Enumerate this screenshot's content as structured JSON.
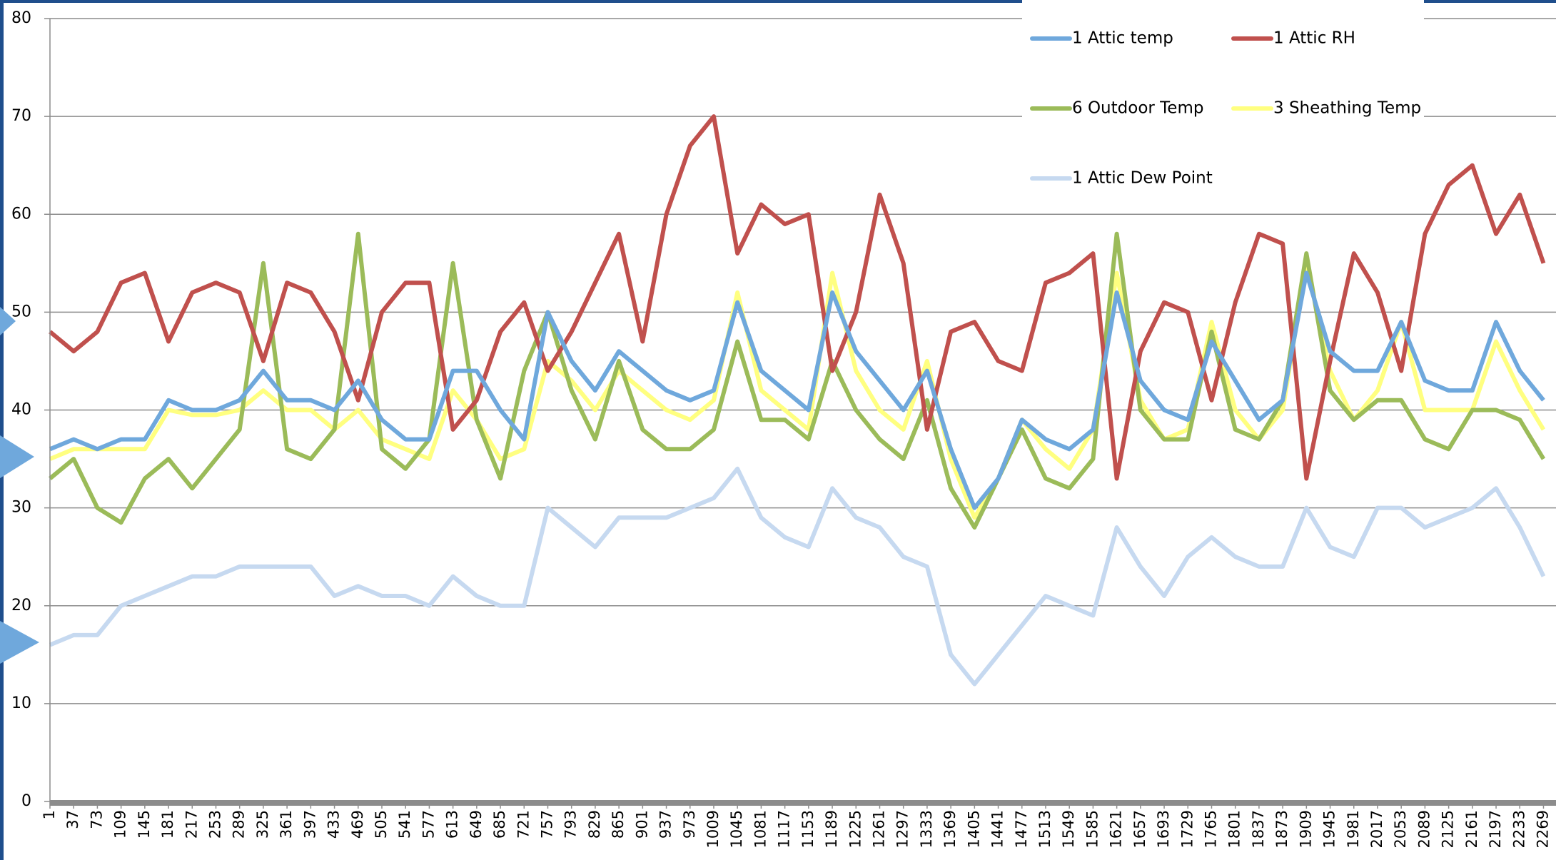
{
  "chart_data": {
    "type": "line",
    "x": [
      1,
      37,
      73,
      109,
      145,
      181,
      217,
      253,
      289,
      325,
      361,
      397,
      433,
      469,
      505,
      541,
      577,
      613,
      649,
      685,
      721,
      757,
      793,
      829,
      865,
      901,
      937,
      973,
      1009,
      1045,
      1081,
      1117,
      1153,
      1189,
      1225,
      1261,
      1297,
      1333,
      1369,
      1405,
      1441,
      1477,
      1513,
      1549,
      1585,
      1621,
      1657,
      1693,
      1729,
      1765,
      1801,
      1837,
      1873,
      1909,
      1945,
      1981,
      2017,
      2053,
      2089,
      2125,
      2161,
      2197,
      2233,
      2269
    ],
    "xlim": [
      1,
      2288
    ],
    "ylim": [
      0,
      80
    ],
    "yticks": [
      0,
      10,
      20,
      30,
      40,
      50,
      60,
      70,
      80
    ],
    "grid": true,
    "legend": "top-right",
    "series": [
      {
        "name": "1 Attic temp",
        "color": "#6fa8dc",
        "values": [
          36,
          37,
          36,
          37,
          37,
          41,
          40,
          40,
          41,
          44,
          41,
          41,
          40,
          43,
          39,
          37,
          37,
          44,
          44,
          40,
          37,
          50,
          45,
          42,
          46,
          44,
          42,
          41,
          42,
          51,
          44,
          42,
          40,
          52,
          46,
          43,
          40,
          44,
          36,
          30,
          33,
          39,
          37,
          36,
          38,
          52,
          43,
          40,
          39,
          47,
          43,
          39,
          41,
          54,
          46,
          44,
          44,
          49,
          43,
          42,
          42,
          49,
          44,
          41
        ]
      },
      {
        "name": "1 Attic RH",
        "color": "#c0504d",
        "values": [
          48,
          46,
          48,
          53,
          54,
          47,
          52,
          53,
          52,
          45,
          53,
          52,
          48,
          41,
          50,
          53,
          53,
          38,
          41,
          48,
          51,
          44,
          48,
          53,
          58,
          47,
          60,
          67,
          70,
          56,
          61,
          59,
          60,
          44,
          50,
          62,
          55,
          38,
          48,
          49,
          45,
          44,
          53,
          54,
          56,
          33,
          46,
          51,
          50,
          41,
          51,
          58,
          57,
          33,
          45,
          56,
          52,
          44,
          58,
          63,
          65,
          58,
          62,
          55
        ]
      },
      {
        "name": "6 Outdoor Temp",
        "color": "#9bbb59",
        "values": [
          33,
          35,
          30,
          28.5,
          33,
          35,
          32,
          35,
          38,
          55,
          36,
          35,
          38,
          58,
          36,
          34,
          37,
          55,
          39,
          33,
          44,
          50,
          42,
          37,
          45,
          38,
          36,
          36,
          38,
          47,
          39,
          39,
          37,
          45,
          40,
          37,
          35,
          41,
          32,
          28,
          33,
          38,
          33,
          32,
          35,
          58,
          40,
          37,
          37,
          48,
          38,
          37,
          41,
          56,
          42,
          39,
          41,
          41,
          37,
          36,
          40,
          40,
          39,
          35
        ]
      },
      {
        "name": "3 Sheathing Temp",
        "color": "#ffff80",
        "values": [
          35,
          36,
          36,
          36,
          36,
          40,
          39.5,
          39.5,
          40,
          42,
          40,
          40,
          38,
          40,
          37,
          36,
          35,
          42,
          39,
          35,
          36,
          45,
          43,
          40,
          44,
          42,
          40,
          39,
          41,
          52,
          42,
          40,
          38,
          54,
          44,
          40,
          38,
          45,
          35,
          29,
          33,
          39,
          36,
          34,
          38,
          54,
          41,
          37,
          38,
          49,
          40,
          37,
          40,
          55,
          44,
          39,
          42,
          49,
          40,
          40,
          40,
          47,
          42,
          38
        ]
      },
      {
        "name": "1 Attic Dew Point",
        "color": "#c6d9f0",
        "values": [
          16,
          17,
          17,
          20,
          21,
          22,
          23,
          23,
          24,
          24,
          24,
          24,
          21,
          22,
          21,
          21,
          20,
          23,
          21,
          20,
          20,
          30,
          28,
          26,
          29,
          29,
          29,
          30,
          31,
          34,
          29,
          27,
          26,
          32,
          29,
          28,
          25,
          24,
          15,
          12,
          15,
          18,
          21,
          20,
          19,
          28,
          24,
          21,
          25,
          27,
          25,
          24,
          24,
          30,
          26,
          25,
          30,
          30,
          28,
          29,
          30,
          32,
          28,
          23
        ]
      }
    ]
  }
}
